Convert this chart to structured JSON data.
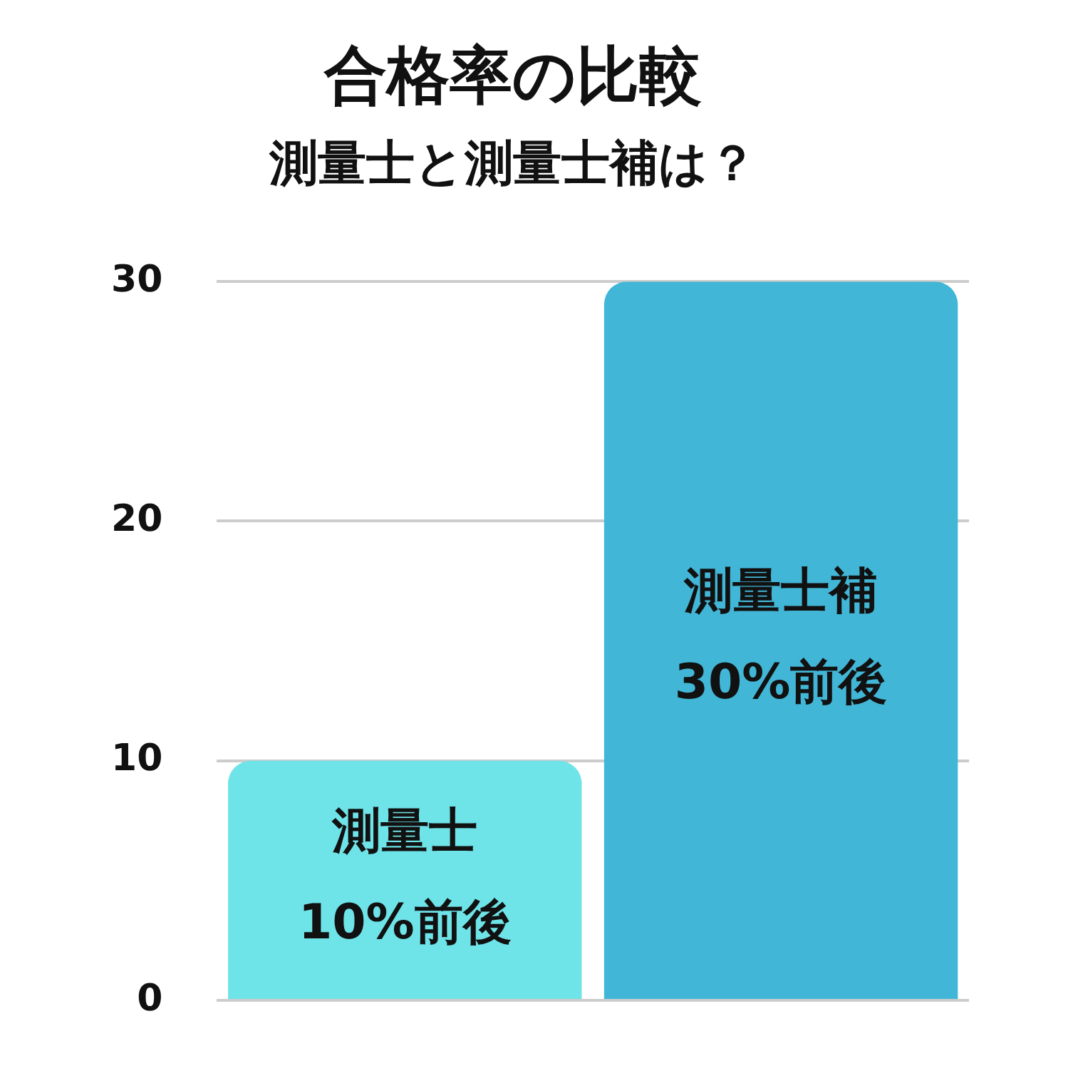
{
  "chart_data": {
    "type": "bar",
    "title": "合格率の比較",
    "subtitle": "測量士と測量士補は？",
    "categories": [
      "測量士",
      "測量士補"
    ],
    "values": [
      10,
      30
    ],
    "colors": [
      "#6ee3e8",
      "#42b6d6"
    ],
    "value_labels": [
      "10%前後",
      "30%前後"
    ],
    "ylim": [
      0,
      30
    ],
    "yticks": [
      0,
      10,
      20,
      30
    ],
    "grid": "y",
    "legend": false,
    "tick_labels": "y"
  }
}
